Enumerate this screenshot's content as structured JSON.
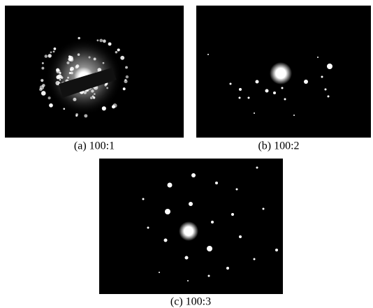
{
  "panels": [
    {
      "caption": "(a) 100:1"
    },
    {
      "caption": "(b) 100:2"
    },
    {
      "caption": "(c) 100:3"
    }
  ]
}
